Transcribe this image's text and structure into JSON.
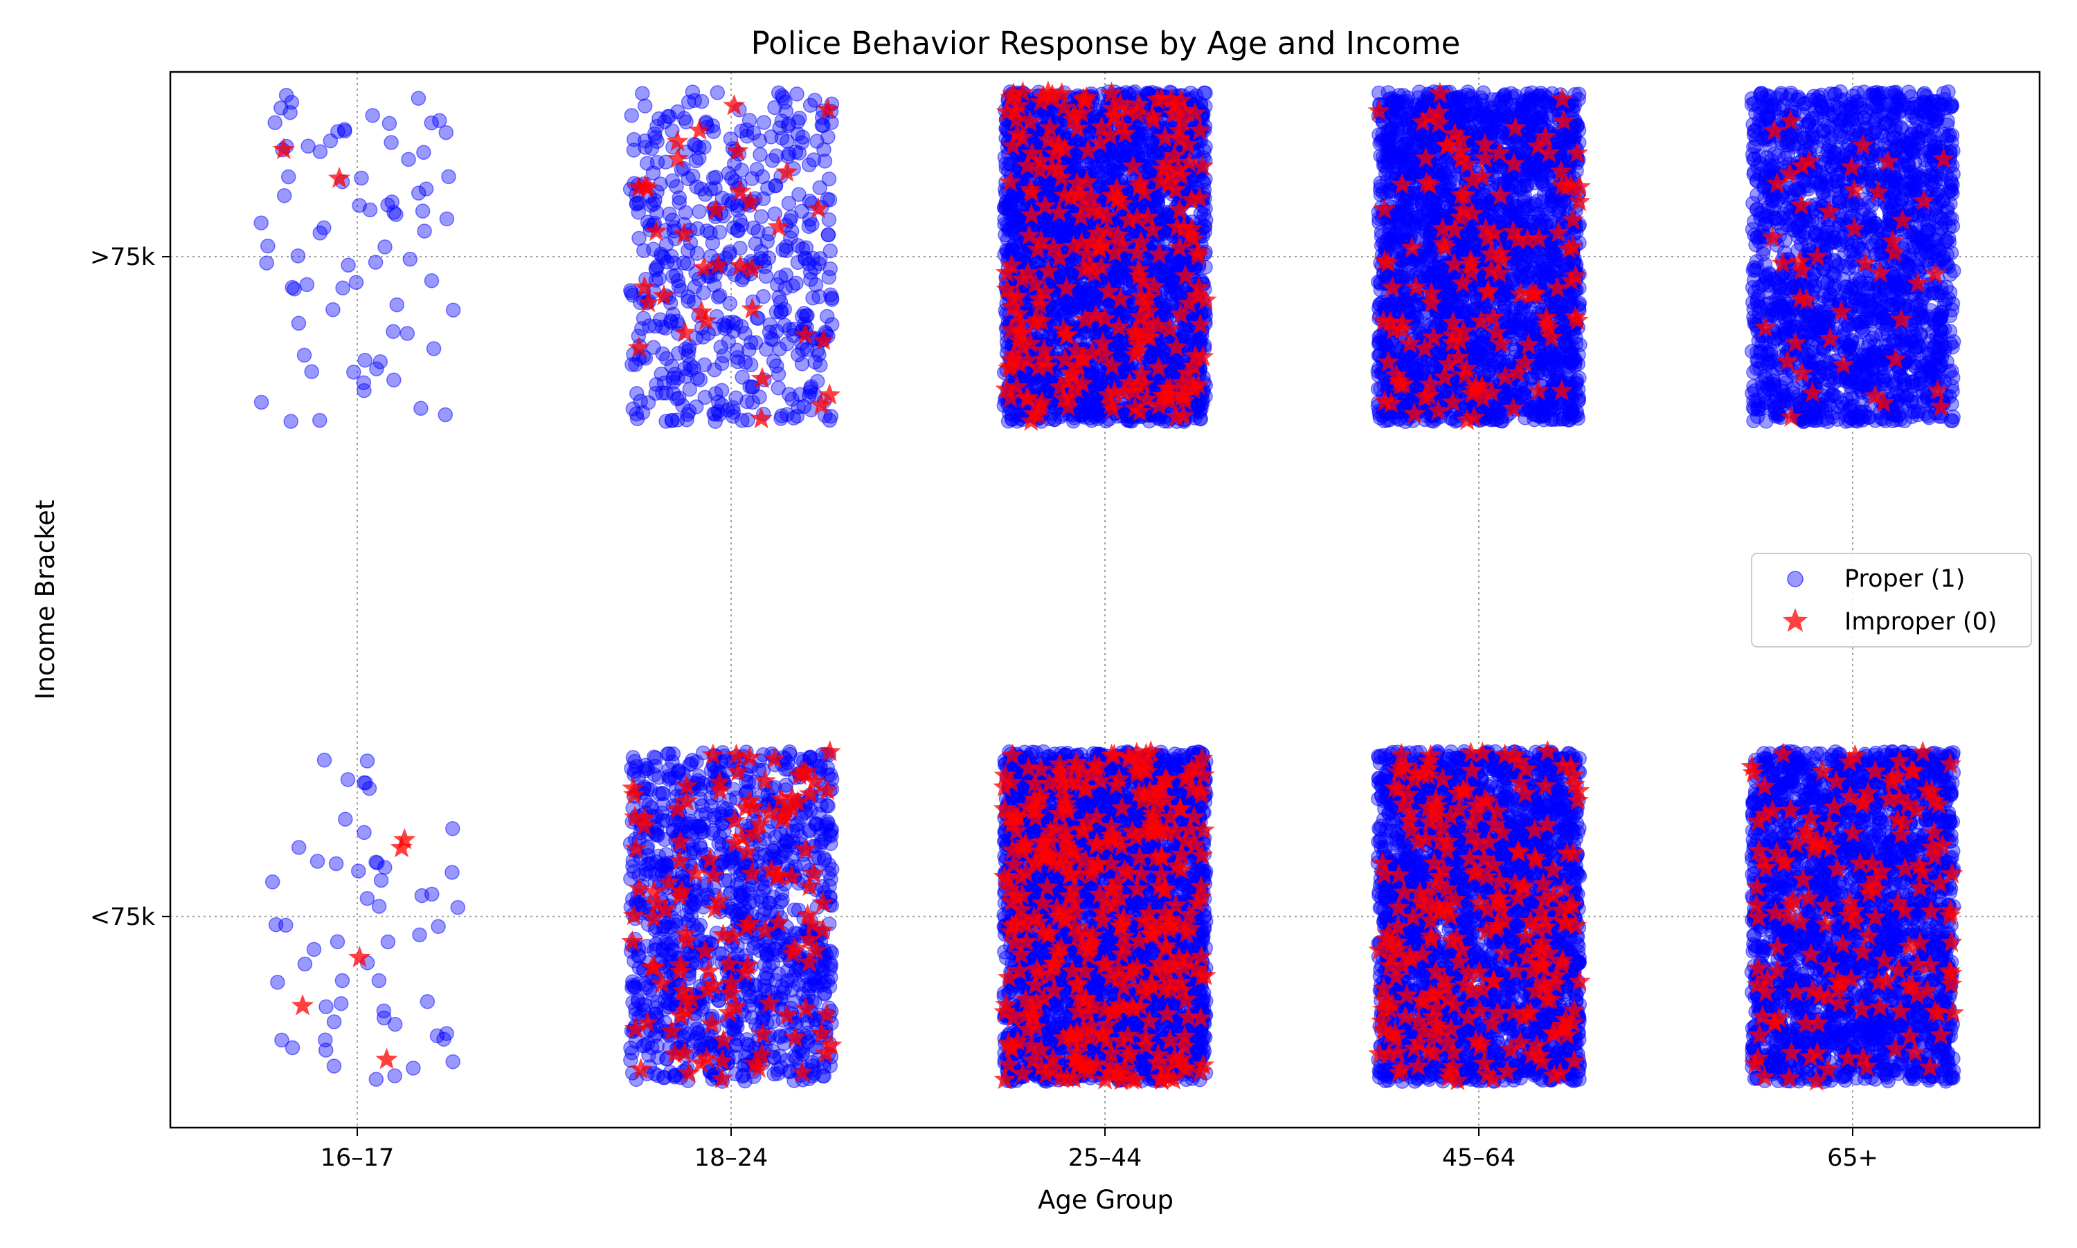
{
  "chart_data": {
    "type": "scatter",
    "title": "Police Behavior Response by Age and Income",
    "xlabel": "Age Group",
    "ylabel": "Income Bracket",
    "x_categories": [
      "16–17",
      "18–24",
      "25–44",
      "45–64",
      "65+"
    ],
    "y_categories": [
      "<75k",
      ">75k"
    ],
    "jitter": {
      "x": 0.27,
      "y": 0.25
    },
    "grid": true,
    "legend_position": "center-right",
    "series": [
      {
        "name": "Proper (1)",
        "marker": "circle",
        "color": "#0000ff",
        "alpha": 0.4,
        "counts": {
          "16–17": {
            "<75k": 55,
            ">75k": 75
          },
          "18–24": {
            "<75k": 1200,
            ">75k": 520
          },
          "25–44": {
            "<75k": 3500,
            ">75k": 3000
          },
          "45–64": {
            "<75k": 3000,
            ">75k": 2800
          },
          "65+": {
            "<75k": 2600,
            ">75k": 2000
          }
        }
      },
      {
        "name": "Improper (0)",
        "marker": "star",
        "color": "#ff0000",
        "alpha": 0.75,
        "counts": {
          "16–17": {
            "<75k": 5,
            ">75k": 2
          },
          "18–24": {
            "<75k": 130,
            ">75k": 35
          },
          "25–44": {
            "<75k": 400,
            ">75k": 280
          },
          "45–64": {
            "<75k": 260,
            ">75k": 140
          },
          "65+": {
            "<75k": 160,
            ">75k": 45
          }
        }
      }
    ]
  }
}
